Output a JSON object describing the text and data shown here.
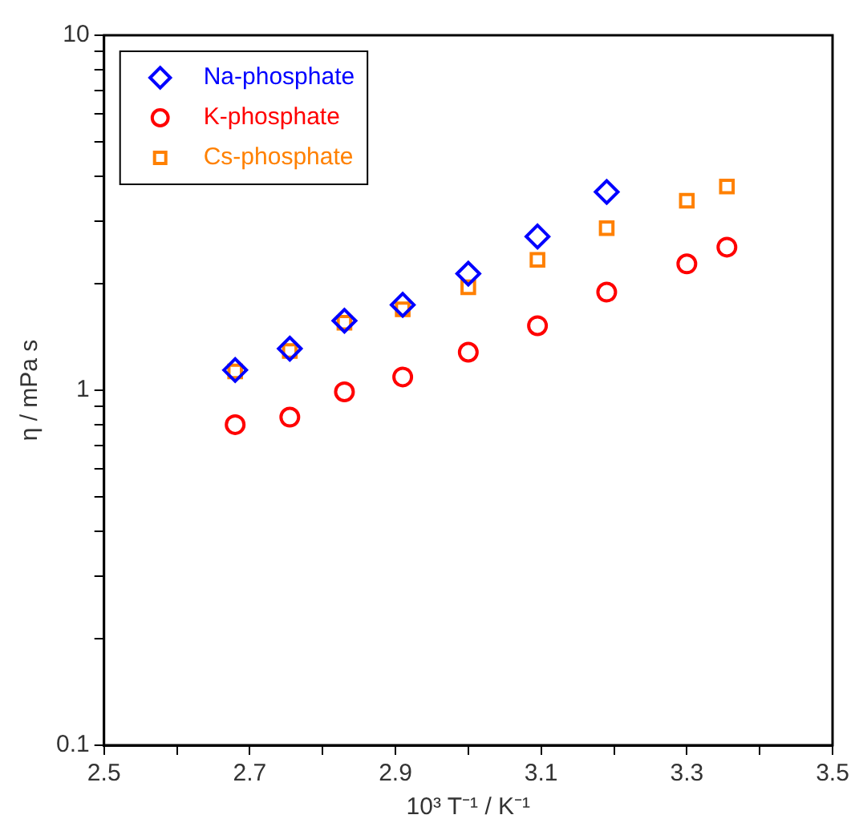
{
  "chart_data": {
    "type": "scatter",
    "xlabel": "10³ T⁻¹ / K⁻¹",
    "ylabel": "η / mPa s",
    "log": "y",
    "grid": false,
    "legend": "top left",
    "xlim": [
      2.5,
      3.5
    ],
    "xticks": [
      2.5,
      {
        "value": 2.6,
        "label": null
      },
      2.7,
      {
        "value": 2.8,
        "label": null
      },
      2.9,
      {
        "value": 3.0,
        "label": null
      },
      3.1,
      {
        "value": 3.2,
        "label": null
      },
      3.3,
      {
        "value": 3.4,
        "label": null
      },
      3.5
    ],
    "ylim": [
      0.1,
      10
    ],
    "yticks": [
      0.1,
      {
        "value": 0.2,
        "label": null
      },
      {
        "value": 0.3,
        "label": null
      },
      {
        "value": 0.4,
        "label": null
      },
      {
        "value": 0.5,
        "label": null
      },
      {
        "value": 0.6,
        "label": null
      },
      {
        "value": 0.7,
        "label": null
      },
      {
        "value": 0.8,
        "label": null
      },
      {
        "value": 0.9,
        "label": null
      },
      1,
      {
        "value": 2,
        "label": null
      },
      {
        "value": 3,
        "label": null
      },
      {
        "value": 4,
        "label": null
      },
      {
        "value": 5,
        "label": null
      },
      {
        "value": 6,
        "label": null
      },
      {
        "value": 7,
        "label": null
      },
      {
        "value": 8,
        "label": null
      },
      {
        "value": 9,
        "label": null
      },
      10
    ],
    "series": [
      {
        "name": "Na-phosphate",
        "color": "#0000ff",
        "marker": "diamond",
        "x": [
          2.68,
          2.755,
          2.83,
          2.91,
          3.0,
          3.095,
          3.19
        ],
        "values": [
          1.14,
          1.31,
          1.57,
          1.74,
          2.13,
          2.71,
          3.62
        ]
      },
      {
        "name": "K-phosphate",
        "color": "#ff0000",
        "marker": "circle",
        "x": [
          2.68,
          2.755,
          2.83,
          2.91,
          3.0,
          3.095,
          3.19,
          3.3,
          3.355
        ],
        "values": [
          0.8,
          0.84,
          0.99,
          1.09,
          1.28,
          1.52,
          1.89,
          2.27,
          2.53
        ]
      },
      {
        "name": "Cs-phosphate",
        "color": "#ff8000",
        "marker": "square",
        "x": [
          2.68,
          2.755,
          2.83,
          2.91,
          3.0,
          3.095,
          3.19,
          3.3,
          3.355
        ],
        "values": [
          1.13,
          1.29,
          1.55,
          1.69,
          1.95,
          2.33,
          2.86,
          3.42,
          3.75
        ]
      }
    ]
  }
}
